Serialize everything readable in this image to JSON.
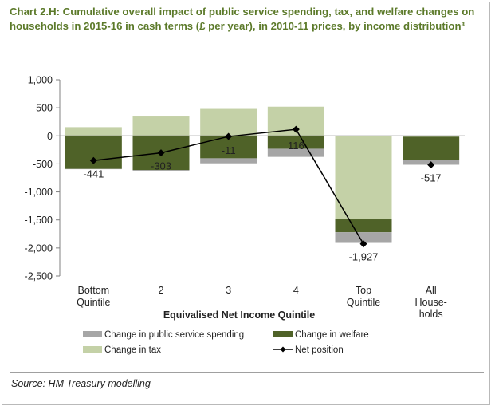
{
  "title": "Chart 2.H: Cumulative overall impact of public service spending, tax, and welfare changes on households in 2015-16 in cash terms (£ per year), in 2010-11 prices, by income distribution³",
  "source": "Source: HM Treasury modelling",
  "colors": {
    "public_service": "#a6a6a6",
    "welfare": "#4f6228",
    "tax": "#c4d1a7",
    "net": "#000000",
    "title": "#5c7a2a"
  },
  "chart_data": {
    "type": "bar",
    "stacked": true,
    "xlabel": "Equivalised Net Income Quintile",
    "ylabel": "",
    "ylim": [
      -2500,
      1000
    ],
    "yticks": [
      1000,
      500,
      0,
      -500,
      -1000,
      -1500,
      -2000,
      -2500
    ],
    "ytick_labels": [
      "1,000",
      "500",
      "0",
      "-500",
      "-1,000",
      "-1,500",
      "-2,000",
      "-2,500"
    ],
    "categories": [
      [
        "Bottom",
        "Quintile"
      ],
      [
        "2"
      ],
      [
        "3"
      ],
      [
        "4"
      ],
      [
        "Top",
        "Quintile"
      ],
      [
        "All",
        "House-",
        "holds"
      ]
    ],
    "series": [
      {
        "name": "Change in public service spending",
        "key": "public_service",
        "values": [
          -5,
          -20,
          -90,
          -145,
          -190,
          -90
        ]
      },
      {
        "name": "Change in welfare",
        "key": "welfare",
        "values": [
          -590,
          -610,
          -400,
          -230,
          -230,
          -410
        ]
      },
      {
        "name": "Change in tax",
        "key": "tax",
        "values": [
          155,
          345,
          480,
          520,
          -1490,
          -15
        ]
      },
      {
        "name": "Net position",
        "key": "net",
        "type": "line",
        "values": [
          -441,
          -303,
          -11,
          116,
          -1927,
          -517
        ]
      }
    ],
    "data_labels": [
      "-441",
      "-303",
      "-11",
      "116",
      "-1,927",
      "-517"
    ],
    "legend": {
      "placement": "bottom",
      "entries": [
        "Change in public service spending",
        "Change in welfare",
        "Change in tax",
        "Net position"
      ]
    },
    "grid": false
  }
}
